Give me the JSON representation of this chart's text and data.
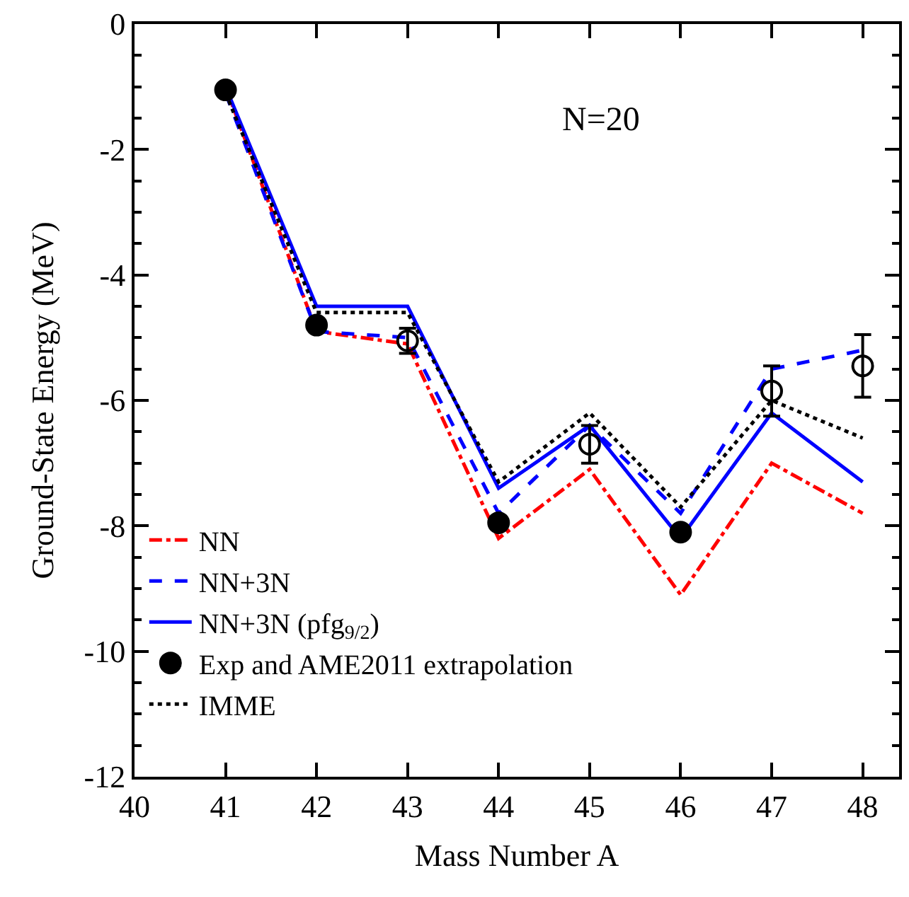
{
  "chart_data": {
    "type": "line",
    "xlabel": "Mass Number A",
    "ylabel": "Ground-State Energy (MeV)",
    "x": [
      41,
      42,
      43,
      44,
      45,
      46,
      47,
      48
    ],
    "xlim": [
      40,
      48.4
    ],
    "xticks": [
      40,
      41,
      42,
      43,
      44,
      45,
      46,
      47,
      48
    ],
    "ylim": [
      -12,
      0
    ],
    "yticks": [
      -12,
      -10,
      -8,
      -6,
      -4,
      -2,
      0
    ],
    "legend": "bottom left",
    "annotations": [
      "N=20"
    ],
    "series": [
      {
        "name": "NN",
        "line_style": "dashdot",
        "color": "#ff0000",
        "values": [
          -1.0,
          -4.9,
          -5.1,
          -8.2,
          -7.1,
          -9.1,
          -7.0,
          -7.8
        ]
      },
      {
        "name": "NN+3N",
        "line_style": "dashed",
        "color": "#0000ff",
        "values": [
          -1.1,
          -4.9,
          -5.0,
          -7.8,
          -6.4,
          -7.8,
          -5.5,
          -5.2
        ]
      },
      {
        "name": "NN+3N (pfg$_{9/2}$)",
        "line_style": "solid",
        "color": "#0000ff",
        "values": [
          -1.0,
          -4.5,
          -4.5,
          -7.4,
          -6.4,
          -8.2,
          -6.2,
          -7.3
        ]
      },
      {
        "name": "Exp and AME2011 extrapolation",
        "type": "scatter",
        "marker": "circle",
        "color": "#000000",
        "values": [
          -1.05,
          -4.8,
          null,
          -7.95,
          null,
          -8.1,
          null,
          null
        ]
      },
      {
        "type": "scatter",
        "marker": "circle",
        "color": "#000000",
        "values": [
          null,
          null,
          -5.05,
          null,
          -6.7,
          null,
          -5.85,
          -5.45
        ],
        "errors": [
          null,
          null,
          0.2,
          null,
          0.3,
          null,
          0.4,
          0.5
        ]
      },
      {
        "name": "IMME",
        "line_style": "dotted",
        "color": "#000000",
        "values": [
          -1.1,
          -4.6,
          -4.6,
          -7.3,
          -6.2,
          -7.7,
          -6.0,
          -6.6
        ]
      }
    ]
  }
}
